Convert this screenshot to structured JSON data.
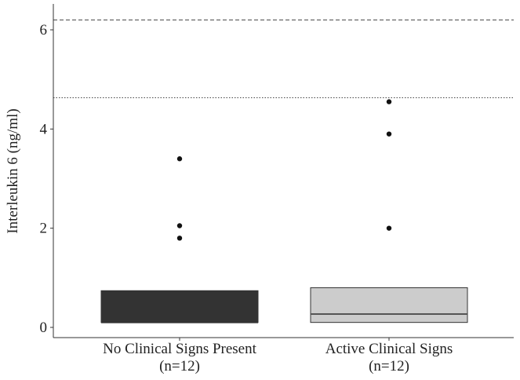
{
  "chart_data": {
    "type": "boxplot",
    "title": "",
    "xlabel": "",
    "ylabel": "Interleukin 6 (ng/ml)",
    "ylim": [
      -0.2,
      6.5
    ],
    "yticks": [
      0,
      2,
      4,
      6
    ],
    "grid": false,
    "legend": "none",
    "categories": [
      {
        "label_line1": "No Clinical Signs Present",
        "label_line2": "(n=12)"
      },
      {
        "label_line1": "Active Clinical Signs",
        "label_line2": "(n=12)"
      }
    ],
    "boxes": [
      {
        "q1": 0.1,
        "median": 0.1,
        "q3": 0.74,
        "color": "#333333",
        "median_color": "#333333",
        "outliers": [
          1.8,
          2.05,
          3.4
        ]
      },
      {
        "q1": 0.1,
        "median": 0.27,
        "q3": 0.8,
        "color": "#cccccc",
        "median_color": "#555555",
        "outliers": [
          2.0,
          3.9,
          4.55
        ]
      }
    ],
    "reference_lines": [
      {
        "y": 6.2,
        "style": "dashed"
      },
      {
        "y": 4.63,
        "style": "dotted"
      }
    ]
  }
}
